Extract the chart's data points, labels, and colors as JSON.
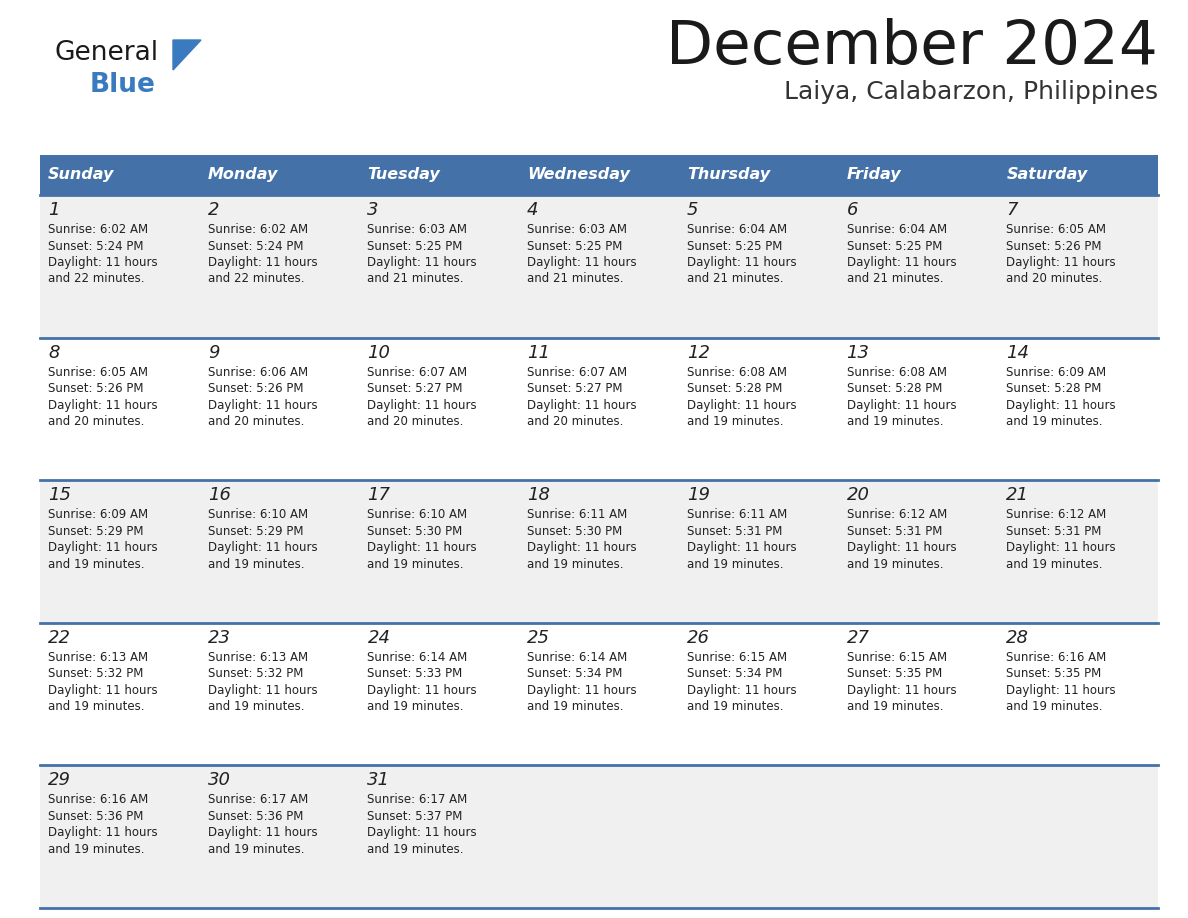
{
  "title": "December 2024",
  "subtitle": "Laiya, Calabarzon, Philippines",
  "header_color": "#4472a8",
  "header_text_color": "#ffffff",
  "bg_color": "#ffffff",
  "row_alt_color": "#f0f0f0",
  "border_color": "#4472a8",
  "days_of_week": [
    "Sunday",
    "Monday",
    "Tuesday",
    "Wednesday",
    "Thursday",
    "Friday",
    "Saturday"
  ],
  "cell_data": [
    [
      "1\nSunrise: 6:02 AM\nSunset: 5:24 PM\nDaylight: 11 hours\nand 22 minutes.",
      "2\nSunrise: 6:02 AM\nSunset: 5:24 PM\nDaylight: 11 hours\nand 22 minutes.",
      "3\nSunrise: 6:03 AM\nSunset: 5:25 PM\nDaylight: 11 hours\nand 21 minutes.",
      "4\nSunrise: 6:03 AM\nSunset: 5:25 PM\nDaylight: 11 hours\nand 21 minutes.",
      "5\nSunrise: 6:04 AM\nSunset: 5:25 PM\nDaylight: 11 hours\nand 21 minutes.",
      "6\nSunrise: 6:04 AM\nSunset: 5:25 PM\nDaylight: 11 hours\nand 21 minutes.",
      "7\nSunrise: 6:05 AM\nSunset: 5:26 PM\nDaylight: 11 hours\nand 20 minutes."
    ],
    [
      "8\nSunrise: 6:05 AM\nSunset: 5:26 PM\nDaylight: 11 hours\nand 20 minutes.",
      "9\nSunrise: 6:06 AM\nSunset: 5:26 PM\nDaylight: 11 hours\nand 20 minutes.",
      "10\nSunrise: 6:07 AM\nSunset: 5:27 PM\nDaylight: 11 hours\nand 20 minutes.",
      "11\nSunrise: 6:07 AM\nSunset: 5:27 PM\nDaylight: 11 hours\nand 20 minutes.",
      "12\nSunrise: 6:08 AM\nSunset: 5:28 PM\nDaylight: 11 hours\nand 19 minutes.",
      "13\nSunrise: 6:08 AM\nSunset: 5:28 PM\nDaylight: 11 hours\nand 19 minutes.",
      "14\nSunrise: 6:09 AM\nSunset: 5:28 PM\nDaylight: 11 hours\nand 19 minutes."
    ],
    [
      "15\nSunrise: 6:09 AM\nSunset: 5:29 PM\nDaylight: 11 hours\nand 19 minutes.",
      "16\nSunrise: 6:10 AM\nSunset: 5:29 PM\nDaylight: 11 hours\nand 19 minutes.",
      "17\nSunrise: 6:10 AM\nSunset: 5:30 PM\nDaylight: 11 hours\nand 19 minutes.",
      "18\nSunrise: 6:11 AM\nSunset: 5:30 PM\nDaylight: 11 hours\nand 19 minutes.",
      "19\nSunrise: 6:11 AM\nSunset: 5:31 PM\nDaylight: 11 hours\nand 19 minutes.",
      "20\nSunrise: 6:12 AM\nSunset: 5:31 PM\nDaylight: 11 hours\nand 19 minutes.",
      "21\nSunrise: 6:12 AM\nSunset: 5:31 PM\nDaylight: 11 hours\nand 19 minutes."
    ],
    [
      "22\nSunrise: 6:13 AM\nSunset: 5:32 PM\nDaylight: 11 hours\nand 19 minutes.",
      "23\nSunrise: 6:13 AM\nSunset: 5:32 PM\nDaylight: 11 hours\nand 19 minutes.",
      "24\nSunrise: 6:14 AM\nSunset: 5:33 PM\nDaylight: 11 hours\nand 19 minutes.",
      "25\nSunrise: 6:14 AM\nSunset: 5:34 PM\nDaylight: 11 hours\nand 19 minutes.",
      "26\nSunrise: 6:15 AM\nSunset: 5:34 PM\nDaylight: 11 hours\nand 19 minutes.",
      "27\nSunrise: 6:15 AM\nSunset: 5:35 PM\nDaylight: 11 hours\nand 19 minutes.",
      "28\nSunrise: 6:16 AM\nSunset: 5:35 PM\nDaylight: 11 hours\nand 19 minutes."
    ],
    [
      "29\nSunrise: 6:16 AM\nSunset: 5:36 PM\nDaylight: 11 hours\nand 19 minutes.",
      "30\nSunrise: 6:17 AM\nSunset: 5:36 PM\nDaylight: 11 hours\nand 19 minutes.",
      "31\nSunrise: 6:17 AM\nSunset: 5:37 PM\nDaylight: 11 hours\nand 19 minutes.",
      "",
      "",
      "",
      ""
    ]
  ],
  "logo_general_color": "#1a1a1a",
  "logo_blue_color": "#3a7abf",
  "logo_triangle_color": "#3a7abf",
  "title_color": "#1a1a1a",
  "subtitle_color": "#333333"
}
